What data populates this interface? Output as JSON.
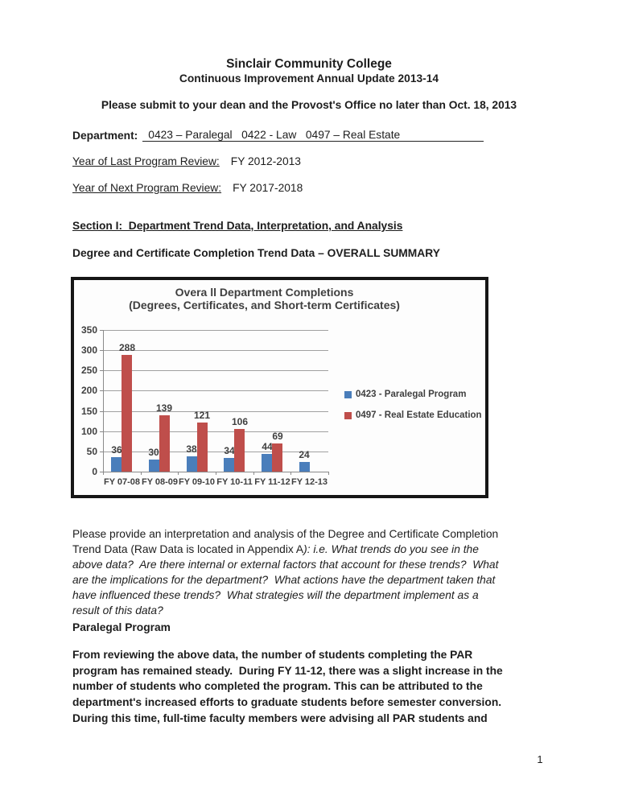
{
  "document": {
    "title": "Sinclair Community College",
    "subtitle": "Continuous Improvement Annual Update 2013-14",
    "submit_notice": "Please submit to your dean and the Provost's Office no later than Oct. 18, 2013",
    "fields": {
      "department": {
        "label": "Department:",
        "value": "0423 – Paralegal   0422 - Law   0497 – Real Estate"
      },
      "last_review": {
        "label": "Year of Last Program Review:",
        "value": "FY 2012-2013"
      },
      "next_review": {
        "label": "Year of Next Program Review:",
        "value": "FY 2017-2018"
      }
    },
    "section1_heading": "Section I:  Department Trend Data, Interpretation, and Analysis",
    "completion_heading": "Degree and Certificate Completion Trend Data – OVERALL SUMMARY",
    "interpretation_prompt": {
      "line1": "Please provide an interpretation and analysis of the Degree and Certificate Completion",
      "line2_regular": "Trend Data (Raw Data is located in Appendix A",
      "line2_italic": "): i.e. What trends do you see in the",
      "line3": "above data?  Are there internal or external factors that account for these trends?  What",
      "line4": "are the implications for the department?  What actions have the department taken that",
      "line5": "have influenced these trends?  What strategies will the department implement as a",
      "line6": "result of this data?"
    },
    "paralegal": {
      "heading": "Paralegal Program",
      "lines": [
        "From reviewing the above data, the number of students completing the PAR",
        "program has remained steady.  During FY 11-12, there was a slight increase in the",
        "number of students who completed the program. This can be attributed to the",
        "department's increased efforts to graduate students before semester conversion.",
        "During this time, full-time faculty members were advising all PAR students and"
      ]
    },
    "page_number": "1"
  },
  "chart_data": {
    "type": "bar",
    "title": "Overa ll Department Completions",
    "subtitle": "(Degrees, Certificates, and Short-term Certificates)",
    "categories": [
      "FY 07-08",
      "FY 08-09",
      "FY 09-10",
      "FY 10-11",
      "FY 11-12",
      "FY 12-13"
    ],
    "series": [
      {
        "name": "0423 - Paralegal Program",
        "color": "#4a7ebb",
        "values": [
          36,
          30,
          38,
          34,
          44,
          24
        ]
      },
      {
        "name": "0497 - Real Estate Education",
        "color": "#bf4e4b",
        "values": [
          288,
          139,
          121,
          106,
          69,
          null
        ]
      }
    ],
    "xlabel": "",
    "ylabel": "",
    "ylim": [
      0,
      350
    ],
    "ytick_step": 50,
    "grid": true,
    "legend_position": "right",
    "grid_color": "#a0a0a0",
    "axis_color": "#8a8a8a",
    "text_color": "#3f3f3f"
  }
}
